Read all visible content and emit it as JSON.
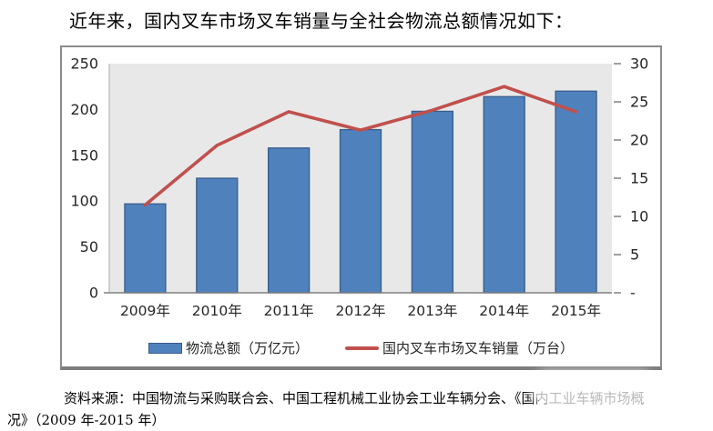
{
  "title": {
    "text": "近年来，国内叉车市场叉车销量与全社会物流总额情况如下："
  },
  "chart_data": {
    "type": "combo-bar-line",
    "categories": [
      "2009年",
      "2010年",
      "2011年",
      "2012年",
      "2013年",
      "2014年",
      "2015年"
    ],
    "series": [
      {
        "name": "物流总额（万亿元）",
        "type": "bar",
        "axis": "left",
        "color": "#4F81BD",
        "border": "#385D8A",
        "values": [
          97,
          125,
          158,
          178,
          198,
          214,
          220
        ]
      },
      {
        "name": "国内叉车市场叉车销量（万台）",
        "type": "line",
        "axis": "right",
        "color": "#C0504D",
        "values": [
          11.5,
          19.3,
          23.7,
          21.3,
          23.9,
          27.0,
          23.7
        ]
      }
    ],
    "left_axis": {
      "min": 0,
      "max": 250,
      "ticks": [
        "250",
        "200",
        "150",
        "100",
        "50",
        "0"
      ]
    },
    "right_axis": {
      "min": 0,
      "max": 30,
      "ticks": [
        "30",
        "25",
        "20",
        "15",
        "10",
        "5",
        "-"
      ]
    },
    "grid": false,
    "legend_position": "bottom",
    "plot_bg": "#E8E8E8",
    "axis_line_color": "#808080"
  },
  "source": {
    "line1": "资料来源：中国物流与采购联合会、中国工程机械工业协会工业车辆分会、《国内工业车辆市场概",
    "line2": "况》（2009 年-2015 年）"
  }
}
